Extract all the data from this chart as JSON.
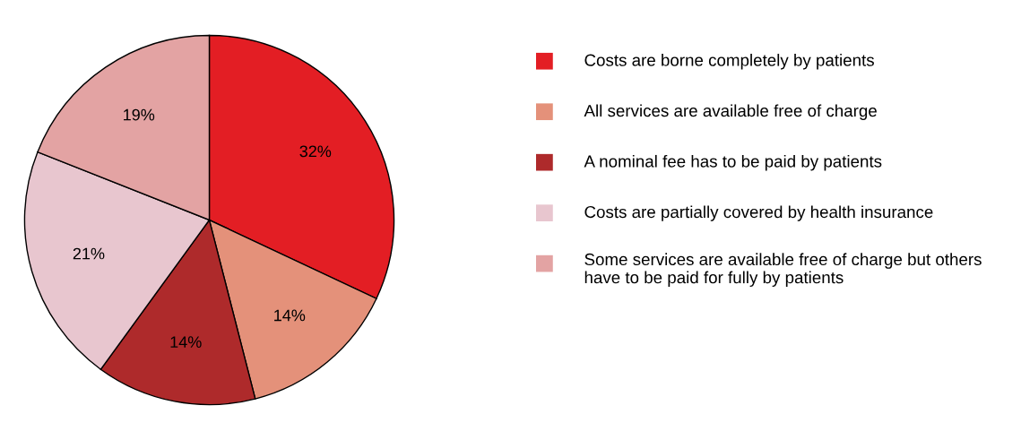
{
  "chart_data": {
    "type": "pie",
    "categories": [
      "Costs are borne completely by patients",
      "All services are available free of charge",
      "A nominal fee has to be paid by patients",
      "Costs are partially covered by health insurance",
      "Some services are available free of charge but others have to be paid for fully by patients"
    ],
    "values": [
      32,
      14,
      14,
      21,
      19
    ],
    "colors": [
      "#e31e24",
      "#e4917a",
      "#ae2a2b",
      "#e8c6cf",
      "#e3a3a3"
    ],
    "value_labels": [
      "32%",
      "14%",
      "14%",
      "21%",
      "19%"
    ],
    "legend": "right"
  }
}
